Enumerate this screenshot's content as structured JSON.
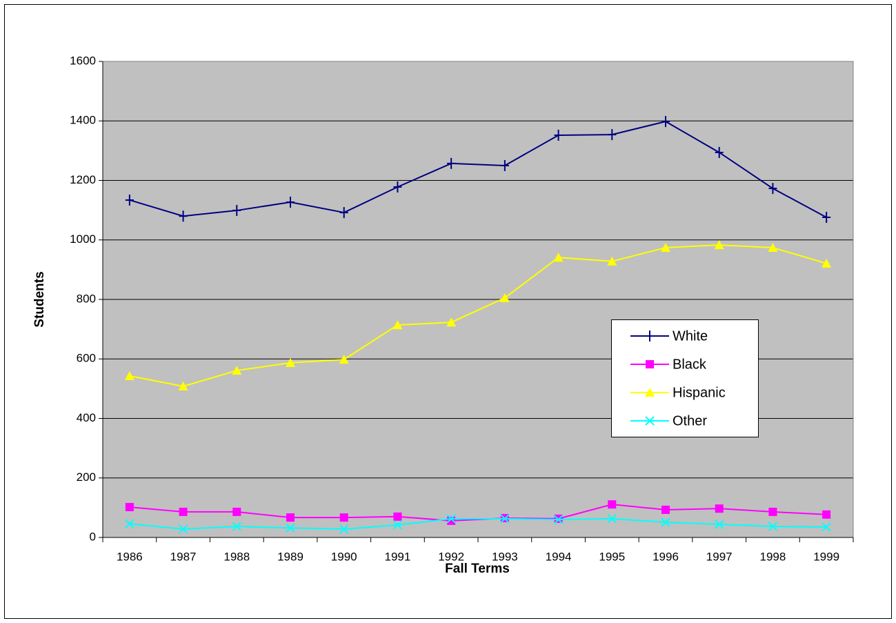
{
  "chart_data": {
    "type": "line",
    "x_label": "Fall Terms",
    "y_label": "Students",
    "categories": [
      "1986",
      "1987",
      "1988",
      "1989",
      "1990",
      "1991",
      "1992",
      "1993",
      "1994",
      "1995",
      "1996",
      "1997",
      "1998",
      "1999"
    ],
    "series": [
      {
        "name": "White",
        "color": "#000080",
        "marker": "dash",
        "values": [
          1134,
          1080,
          1099,
          1127,
          1092,
          1178,
          1257,
          1250,
          1352,
          1354,
          1398,
          1294,
          1173,
          1076
        ]
      },
      {
        "name": "Black",
        "color": "#ff00ff",
        "marker": "square",
        "values": [
          102,
          86,
          86,
          67,
          67,
          70,
          56,
          65,
          63,
          111,
          93,
          97,
          86,
          77
        ]
      },
      {
        "name": "Hispanic",
        "color": "#ffff00",
        "marker": "triangle",
        "values": [
          543,
          508,
          561,
          587,
          598,
          714,
          723,
          805,
          941,
          928,
          974,
          983,
          974,
          921
        ]
      },
      {
        "name": "Other",
        "color": "#00ffff",
        "marker": "x",
        "values": [
          46,
          28,
          37,
          32,
          28,
          42,
          63,
          63,
          60,
          63,
          51,
          44,
          37,
          35
        ]
      }
    ],
    "ylim": [
      0,
      1600
    ],
    "yticks": [
      0,
      200,
      400,
      600,
      800,
      1000,
      1200,
      1400,
      1600
    ],
    "grid": true,
    "legend": "right",
    "plot_background": "#c0c0c0"
  }
}
